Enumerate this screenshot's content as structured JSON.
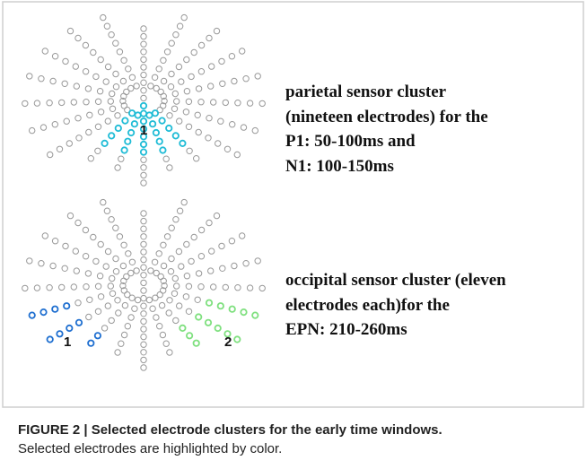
{
  "figure": {
    "top_cluster": {
      "marker": "1",
      "lines": [
        "parietal sensor cluster",
        "(nineteen electrodes) for the",
        "P1: 50-100ms and",
        "N1: 100-150ms"
      ]
    },
    "bottom_cluster": {
      "markers": [
        "1",
        "2"
      ],
      "lines": [
        "occipital sensor cluster (eleven",
        "electrodes each)for the",
        "EPN: 210-260ms"
      ]
    }
  },
  "caption": {
    "title": "FIGURE 2 | Selected electrode clusters for the early time windows.",
    "text": "Selected electrodes are highlighted by color."
  }
}
